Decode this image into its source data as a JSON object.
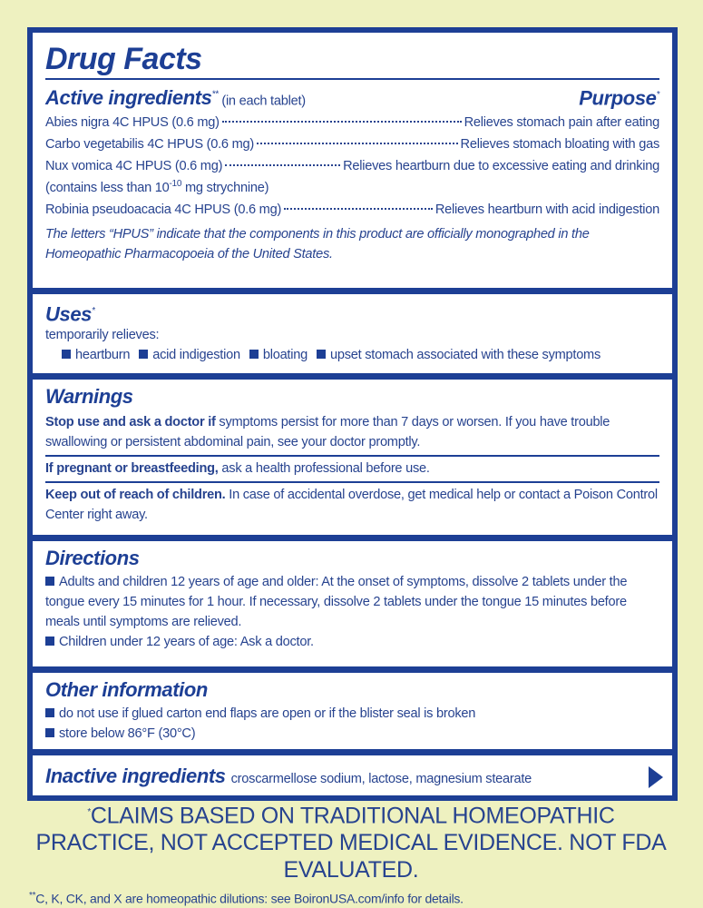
{
  "title": "Drug Facts",
  "active": {
    "heading": "Active ingredients",
    "heading_sup": "**",
    "heading_note": "(in each tablet)",
    "purpose_heading": "Purpose",
    "purpose_sup": "*",
    "rows": [
      {
        "ingredient": "Abies nigra 4C HPUS (0.6 mg)",
        "purpose": "Relieves stomach pain after eating"
      },
      {
        "ingredient": "Carbo vegetabilis 4C HPUS (0.6 mg)",
        "purpose": "Relieves stomach bloating with gas"
      },
      {
        "ingredient": "Nux vomica 4C HPUS (0.6 mg)",
        "purpose": "Relieves heartburn due to excessive eating and drinking",
        "note_start": "(contains less than 10",
        "note_sup": "-10",
        "note_end": " mg strychnine)"
      },
      {
        "ingredient": "Robinia pseudoacacia 4C HPUS (0.6 mg)",
        "purpose": "Relieves heartburn with acid indigestion"
      }
    ],
    "note": "The letters “HPUS” indicate that the components in this product are officially monographed in the Homeopathic Pharmacopoeia of the United States."
  },
  "uses": {
    "heading": "Uses",
    "heading_sup": "*",
    "intro": "temporarily relieves:",
    "items": [
      "heartburn",
      "acid indigestion",
      "bloating",
      "upset stomach associated with these symptoms"
    ]
  },
  "warnings": {
    "heading": "Warnings",
    "paragraphs": [
      {
        "lead": "Stop use and ask a doctor if",
        "text": " symptoms persist for more than 7 days or worsen. If you have trouble swallowing or persistent abdominal pain, see your doctor promptly."
      },
      {
        "lead": "If pregnant or breastfeeding,",
        "text": " ask a health professional before use."
      },
      {
        "lead": "Keep out of reach of children.",
        "text": " In case of accidental overdose, get medical help or contact a Poison Control Center right away."
      }
    ]
  },
  "directions": {
    "heading": "Directions",
    "items": [
      "Adults and children 12 years of age and older: At the onset of symptoms, dissolve 2 tablets under the tongue every 15 minutes for 1 hour. If necessary, dissolve 2 tablets under the tongue 15 minutes before meals until symptoms are relieved.",
      "Children under 12 years of age: Ask a doctor."
    ]
  },
  "other": {
    "heading": "Other information",
    "items": [
      "do not use if glued carton end flaps are open or if the blister seal is broken",
      "store below 86°F (30°C)"
    ]
  },
  "inactive": {
    "heading": "Inactive ingredients",
    "text": "croscarmellose sodium, lactose, magnesium stearate"
  },
  "footer": {
    "claims_sup": "*",
    "claims": "CLAIMS BASED ON TRADITIONAL HOMEOPATHIC PRACTICE, NOT ACCEPTED MEDICAL EVIDENCE. NOT FDA EVALUATED.",
    "note_sup": "**",
    "note": "C, K, CK, and X are homeopathic dilutions: see BoironUSA.com/info for details."
  }
}
